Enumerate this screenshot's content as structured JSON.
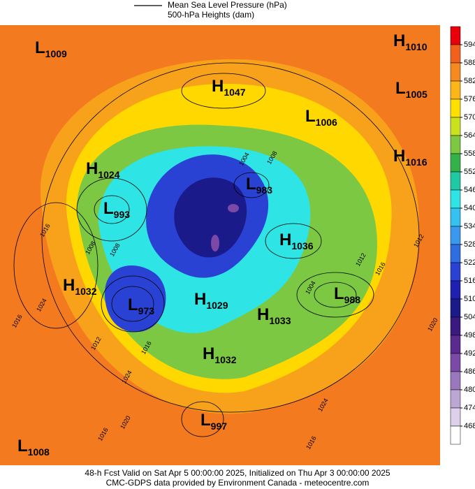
{
  "legend": {
    "lines": [
      "Mean Sea Level Pressure (hPa)",
      "500-hPa Heights (dam)"
    ]
  },
  "centers": [
    {
      "letter": "L",
      "value": "1009"
    },
    {
      "letter": "H",
      "value": "1010"
    },
    {
      "letter": "H",
      "value": "1047"
    },
    {
      "letter": "L",
      "value": "1005"
    },
    {
      "letter": "L",
      "value": "1006"
    },
    {
      "letter": "H",
      "value": "1016"
    },
    {
      "letter": "H",
      "value": "1024"
    },
    {
      "letter": "L",
      "value": "983"
    },
    {
      "letter": "L",
      "value": "993"
    },
    {
      "letter": "H",
      "value": "1036"
    },
    {
      "letter": "H",
      "value": "1032"
    },
    {
      "letter": "L",
      "value": "988"
    },
    {
      "letter": "L",
      "value": "973"
    },
    {
      "letter": "H",
      "value": "1029"
    },
    {
      "letter": "H",
      "value": "1033"
    },
    {
      "letter": "H",
      "value": "1032"
    },
    {
      "letter": "L",
      "value": "997"
    },
    {
      "letter": "L",
      "value": "1008"
    }
  ],
  "contour_labels": [
    "1016",
    "1008",
    "1008",
    "1004",
    "1008",
    "1012",
    "1012",
    "1016",
    "1004",
    "1024",
    "1016",
    "1012",
    "1016",
    "1024",
    "1020",
    "1016",
    "1024",
    "1016",
    "1020"
  ],
  "colorbar": {
    "ticks": [
      594,
      588,
      582,
      576,
      570,
      564,
      558,
      552,
      546,
      540,
      534,
      528,
      522,
      516,
      510,
      504,
      498,
      492,
      486,
      480,
      474,
      468
    ],
    "colors": [
      "#e8000b",
      "#f2611c",
      "#f68a1e",
      "#fbb617",
      "#ffe000",
      "#c9e21d",
      "#7cc843",
      "#34b24a",
      "#1ec9a4",
      "#2fe4e4",
      "#36c2f0",
      "#3a98ee",
      "#2e6ee0",
      "#2a42d4",
      "#2020b0",
      "#1a1a8a",
      "#3a1a80",
      "#5b2a90",
      "#7a4aa6",
      "#9a78be",
      "#bba6d4",
      "#ddd0ea",
      "#ffffff"
    ]
  },
  "footer": [
    "48-h Fcst Valid on Sat Apr  5 00:00:00 2025, Initialized on Thu Apr  3 00:00:00 2025",
    "CMC-GDPS data provided by Environment Canada - meteocentre.com"
  ]
}
